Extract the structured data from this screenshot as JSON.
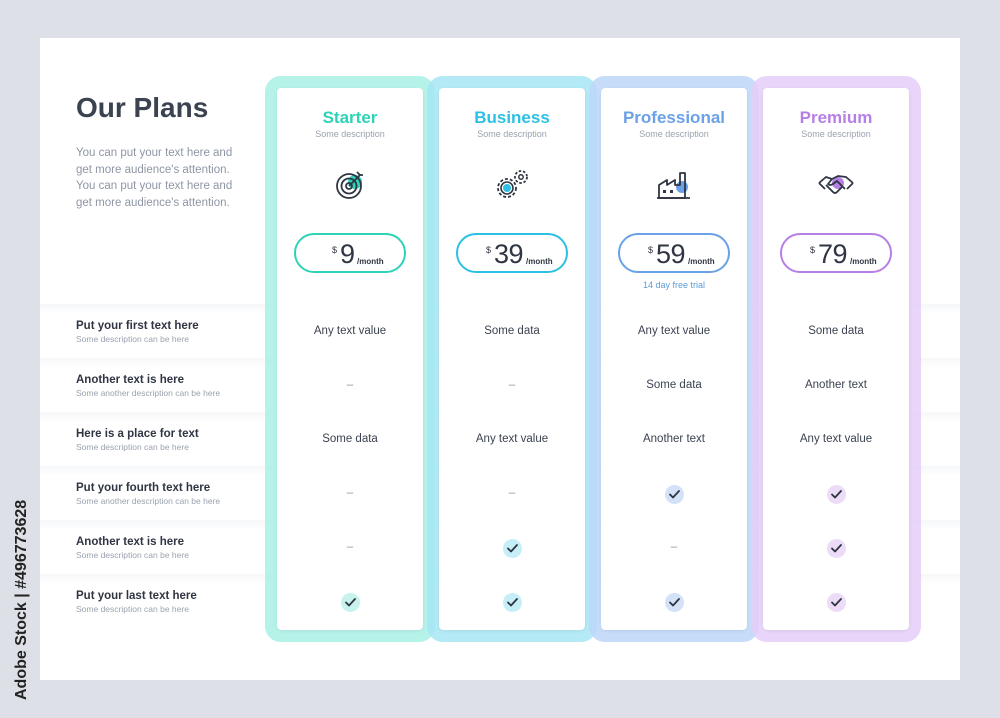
{
  "page": {
    "title": "Our Plans",
    "intro": "You can put your text here and get more audience's attention. You can put your text here and get more audience's attention.",
    "watermark": "Adobe Stock | #496773628"
  },
  "rows": [
    {
      "title": "Put your first text here",
      "desc": "Some description can be here"
    },
    {
      "title": "Another text is here",
      "desc": "Some another description can be here"
    },
    {
      "title": "Here is a place for text",
      "desc": "Some description can be here"
    },
    {
      "title": "Put your fourth text here",
      "desc": "Some another description can be here"
    },
    {
      "title": "Another text is here",
      "desc": "Some description can be here"
    },
    {
      "title": "Put your last text here",
      "desc": "Some description can be here"
    }
  ],
  "plans": [
    {
      "name": "Starter",
      "desc": "Some description",
      "icon": "target-icon",
      "currency": "$",
      "price": "9",
      "period": "/month",
      "note": "",
      "color": "#2ed3b7",
      "frame": "#a8f0e4",
      "check_bg": "#c8f3ec",
      "cells": [
        "Any text value",
        "–",
        "Some data",
        "–",
        "–",
        "check"
      ]
    },
    {
      "name": "Business",
      "desc": "Some description",
      "icon": "gears-icon",
      "currency": "$",
      "price": "39",
      "period": "/month",
      "note": "",
      "color": "#2cc1e4",
      "frame": "#a6e6f3",
      "check_bg": "#c6eef8",
      "cells": [
        "Some data",
        "–",
        "Any text value",
        "–",
        "check",
        "check"
      ]
    },
    {
      "name": "Professional",
      "desc": "Some description",
      "icon": "factory-icon",
      "currency": "$",
      "price": "59",
      "period": "/month",
      "note": "14 day free trial",
      "color": "#6ba1e6",
      "frame": "#bcd6f8",
      "check_bg": "#d3e2f8",
      "cells": [
        "Any text value",
        "Some data",
        "Another text",
        "check",
        "–",
        "check"
      ]
    },
    {
      "name": "Premium",
      "desc": "Some description",
      "icon": "handshake-icon",
      "currency": "$",
      "price": "79",
      "period": "/month",
      "note": "",
      "color": "#b67fe6",
      "frame": "#e4cef8",
      "check_bg": "#ecdcf8",
      "cells": [
        "Some data",
        "Another text",
        "Any text value",
        "check",
        "check",
        "check"
      ]
    }
  ]
}
